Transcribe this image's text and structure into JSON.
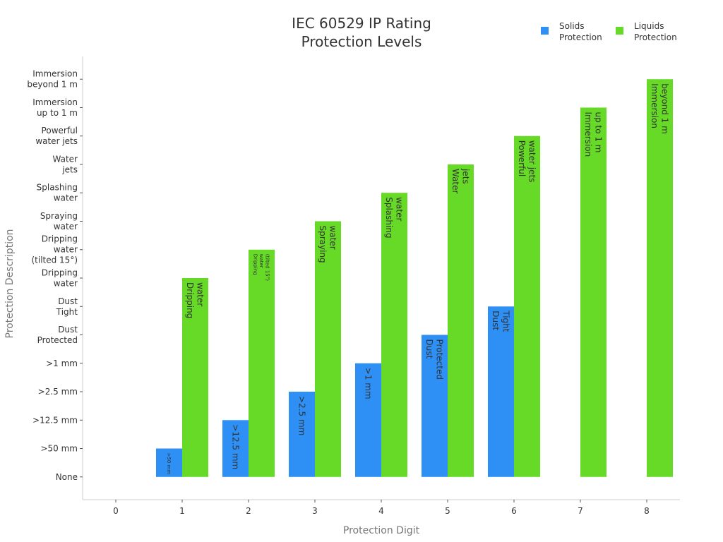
{
  "chart_data": {
    "type": "bar",
    "title": [
      "IEC 60529 IP Rating",
      "Protection Levels"
    ],
    "xlabel": "Protection Digit",
    "ylabel": "Protection Description",
    "x_ticks": [
      "0",
      "1",
      "2",
      "3",
      "4",
      "5",
      "6",
      "7",
      "8"
    ],
    "xlim": [
      -0.5,
      8.5
    ],
    "ylim": [
      -0.8,
      14.8
    ],
    "y_ticks": [
      {
        "value": 0,
        "lines": [
          "None"
        ]
      },
      {
        "value": 1,
        "lines": [
          ">50 mm"
        ]
      },
      {
        "value": 2,
        "lines": [
          ">12.5 mm"
        ]
      },
      {
        "value": 3,
        "lines": [
          ">2.5 mm"
        ]
      },
      {
        "value": 4,
        "lines": [
          ">1 mm"
        ]
      },
      {
        "value": 5,
        "lines": [
          "Dust",
          "Protected"
        ]
      },
      {
        "value": 6,
        "lines": [
          "Dust",
          "Tight"
        ]
      },
      {
        "value": 7,
        "lines": [
          "Dripping",
          "water"
        ]
      },
      {
        "value": 8,
        "lines": [
          "Dripping",
          "water",
          "(tilted 15°)"
        ]
      },
      {
        "value": 9,
        "lines": [
          "Spraying",
          "water"
        ]
      },
      {
        "value": 10,
        "lines": [
          "Splashing",
          "water"
        ]
      },
      {
        "value": 11,
        "lines": [
          "Water",
          "jets"
        ]
      },
      {
        "value": 12,
        "lines": [
          "Powerful",
          "water jets"
        ]
      },
      {
        "value": 13,
        "lines": [
          "Immersion",
          "up to 1 m"
        ]
      },
      {
        "value": 14,
        "lines": [
          "Immersion",
          "beyond 1 m"
        ]
      }
    ],
    "legend": {
      "position": "top-right"
    },
    "grid": false,
    "series": [
      {
        "name": "Solids Protection",
        "legend_lines": [
          "Solids",
          "Protection"
        ],
        "color": "#2e90f5",
        "points": [
          {
            "x": 1,
            "y": 1,
            "label": [
              ">50 mm"
            ],
            "label_size": 7
          },
          {
            "x": 2,
            "y": 2,
            "label": [
              ">12.5 mm"
            ],
            "label_size": 12
          },
          {
            "x": 3,
            "y": 3,
            "label": [
              ">2.5 mm"
            ],
            "label_size": 12
          },
          {
            "x": 4,
            "y": 4,
            "label": [
              ">1 mm"
            ],
            "label_size": 12
          },
          {
            "x": 5,
            "y": 5,
            "label": [
              "Dust",
              "Protected"
            ],
            "label_size": 12
          },
          {
            "x": 6,
            "y": 6,
            "label": [
              "Dust",
              "Tight"
            ],
            "label_size": 12
          }
        ]
      },
      {
        "name": "Liquids Protection",
        "legend_lines": [
          "Liquids",
          "Protection"
        ],
        "color": "#66da26",
        "points": [
          {
            "x": 1,
            "y": 7,
            "label": [
              "Dripping",
              "water"
            ],
            "label_size": 12
          },
          {
            "x": 2,
            "y": 8,
            "label": [
              "Dripping",
              "water",
              "(tilted 15°)"
            ],
            "label_size": 7
          },
          {
            "x": 3,
            "y": 9,
            "label": [
              "Spraying",
              "water"
            ],
            "label_size": 12
          },
          {
            "x": 4,
            "y": 10,
            "label": [
              "Splashing",
              "water"
            ],
            "label_size": 12
          },
          {
            "x": 5,
            "y": 11,
            "label": [
              "Water",
              "jets"
            ],
            "label_size": 12
          },
          {
            "x": 6,
            "y": 12,
            "label": [
              "Powerful",
              "water jets"
            ],
            "label_size": 12
          },
          {
            "x": 7,
            "y": 13,
            "label": [
              "Immersion",
              "up to 1 m"
            ],
            "label_size": 12
          },
          {
            "x": 8,
            "y": 14,
            "label": [
              "Immersion",
              "beyond 1 m"
            ],
            "label_size": 12
          }
        ]
      }
    ]
  }
}
